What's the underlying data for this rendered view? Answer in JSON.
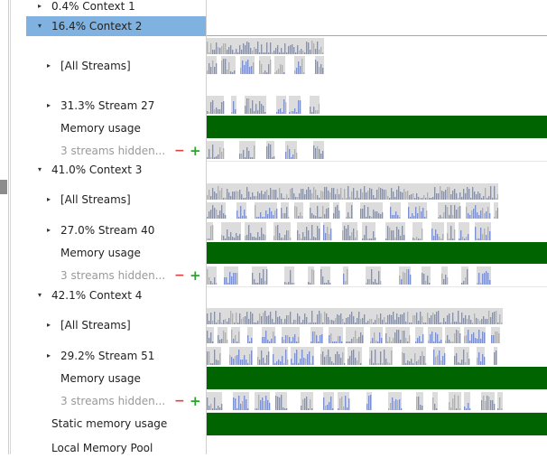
{
  "colors": {
    "selection": "#7fb2e0",
    "memory_band": "#006400",
    "bar_blue": "#7b8fcf",
    "bar_gray": "#b0b0b0",
    "bar_bg": "#dcdcdc",
    "remove": "#e04040",
    "add": "#2aa52a"
  },
  "tree": {
    "context1": {
      "label": "0.4% Context 1",
      "expanded": false
    },
    "context2": {
      "label": "16.4% Context 2",
      "expanded": true,
      "selected": true,
      "all_streams": "[All Streams]",
      "stream": "31.3% Stream 27",
      "memory": "Memory usage",
      "hidden": "3 streams hidden..."
    },
    "context3": {
      "label": "41.0% Context 3",
      "expanded": true,
      "all_streams": "[All Streams]",
      "stream": "27.0% Stream 40",
      "memory": "Memory usage",
      "hidden": "3 streams hidden..."
    },
    "context4": {
      "label": "42.1% Context 4",
      "expanded": true,
      "all_streams": "[All Streams]",
      "stream": "29.2% Stream 51",
      "memory": "Memory usage",
      "hidden": "3 streams hidden..."
    },
    "static_memory": "Static memory usage",
    "local_memory_pool": "Local Memory Pool"
  },
  "icons": {
    "collapsed": "▸",
    "expanded": "▾",
    "remove": "−",
    "add": "+"
  }
}
